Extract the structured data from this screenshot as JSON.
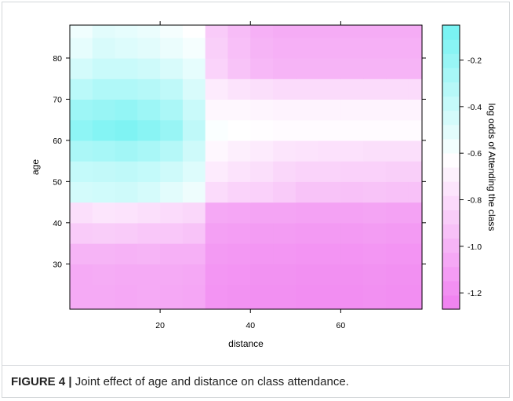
{
  "chart_data": {
    "type": "heatmap",
    "title": "",
    "xlabel": "distance",
    "ylabel": "age",
    "colorbar_label": "log odds of Attending the class",
    "xlim": [
      0,
      78
    ],
    "ylim": [
      19,
      88
    ],
    "x_ticks": [
      20,
      40,
      60
    ],
    "y_ticks": [
      30,
      40,
      50,
      60,
      70,
      80
    ],
    "color_ticks": [
      -0.2,
      -0.4,
      -0.6,
      -0.8,
      -1.0,
      -1.2
    ],
    "color_tick_labels": [
      "-0.2",
      "-0.4",
      "-0.6",
      "-0.8",
      "-1.0",
      "-1.2"
    ],
    "color_range": [
      -1.27,
      -0.05
    ],
    "color_low": "#f07ef0",
    "color_mid": "#ffffff",
    "color_high": "#73f2f2",
    "color_mid_value": -0.62,
    "x_edges": [
      0,
      5,
      10,
      15,
      20,
      25,
      30,
      35,
      40,
      45,
      50,
      55,
      60,
      65,
      70,
      75,
      78
    ],
    "y_edges": [
      19,
      25,
      30,
      35,
      40,
      45,
      50,
      55,
      60,
      65,
      70,
      75,
      80,
      85,
      88
    ],
    "values": [
      [
        -1.05,
        -1.05,
        -1.06,
        -1.05,
        -1.06,
        -1.07,
        -1.16,
        -1.17,
        -1.18,
        -1.18,
        -1.19,
        -1.19,
        -1.19,
        -1.18,
        -1.19,
        -1.19
      ],
      [
        -1.05,
        -1.04,
        -1.05,
        -1.05,
        -1.05,
        -1.06,
        -1.15,
        -1.16,
        -1.17,
        -1.17,
        -1.18,
        -1.18,
        -1.18,
        -1.17,
        -1.18,
        -1.18
      ],
      [
        -1.0,
        -1.0,
        -1.01,
        -1.0,
        -1.02,
        -1.02,
        -1.13,
        -1.14,
        -1.15,
        -1.15,
        -1.16,
        -1.16,
        -1.16,
        -1.15,
        -1.16,
        -1.16
      ],
      [
        -0.88,
        -0.87,
        -0.88,
        -0.9,
        -0.9,
        -0.92,
        -1.1,
        -1.11,
        -1.12,
        -1.12,
        -1.13,
        -1.13,
        -1.13,
        -1.12,
        -1.13,
        -1.13
      ],
      [
        -0.78,
        -0.75,
        -0.76,
        -0.78,
        -0.8,
        -0.82,
        -1.06,
        -1.07,
        -1.08,
        -1.08,
        -1.09,
        -1.09,
        -1.09,
        -1.08,
        -1.09,
        -1.09
      ],
      [
        -0.44,
        -0.43,
        -0.42,
        -0.45,
        -0.5,
        -0.55,
        -0.8,
        -0.84,
        -0.85,
        -0.88,
        -0.92,
        -0.92,
        -0.93,
        -0.92,
        -0.93,
        -0.93
      ],
      [
        -0.38,
        -0.37,
        -0.36,
        -0.38,
        -0.42,
        -0.48,
        -0.72,
        -0.76,
        -0.78,
        -0.82,
        -0.84,
        -0.84,
        -0.85,
        -0.85,
        -0.86,
        -0.86
      ],
      [
        -0.28,
        -0.26,
        -0.24,
        -0.27,
        -0.32,
        -0.42,
        -0.66,
        -0.7,
        -0.72,
        -0.75,
        -0.76,
        -0.77,
        -0.77,
        -0.78,
        -0.78,
        -0.78
      ],
      [
        -0.16,
        -0.12,
        -0.1,
        -0.14,
        -0.2,
        -0.36,
        -0.6,
        -0.62,
        -0.63,
        -0.64,
        -0.64,
        -0.64,
        -0.64,
        -0.64,
        -0.64,
        -0.64
      ],
      [
        -0.22,
        -0.2,
        -0.18,
        -0.22,
        -0.28,
        -0.4,
        -0.66,
        -0.66,
        -0.67,
        -0.68,
        -0.68,
        -0.68,
        -0.68,
        -0.68,
        -0.68,
        -0.68
      ],
      [
        -0.34,
        -0.3,
        -0.3,
        -0.32,
        -0.36,
        -0.46,
        -0.72,
        -0.76,
        -0.78,
        -0.8,
        -0.8,
        -0.8,
        -0.8,
        -0.8,
        -0.8,
        -0.8
      ],
      [
        -0.44,
        -0.4,
        -0.4,
        -0.42,
        -0.46,
        -0.52,
        -0.84,
        -0.92,
        -0.98,
        -1.0,
        -1.0,
        -1.0,
        -1.0,
        -1.0,
        -1.0,
        -1.0
      ],
      [
        -0.52,
        -0.46,
        -0.48,
        -0.5,
        -0.54,
        -0.58,
        -0.86,
        -0.94,
        -1.0,
        -1.02,
        -1.02,
        -1.02,
        -1.02,
        -1.02,
        -1.02,
        -1.02
      ],
      [
        -0.56,
        -0.5,
        -0.52,
        -0.54,
        -0.58,
        -0.62,
        -0.88,
        -0.96,
        -1.02,
        -1.04,
        -1.04,
        -1.04,
        -1.04,
        -1.04,
        -1.04,
        -1.04
      ]
    ]
  },
  "caption": {
    "label": "FIGURE 4 |",
    "text": " Joint effect of age and distance on class attendance."
  }
}
